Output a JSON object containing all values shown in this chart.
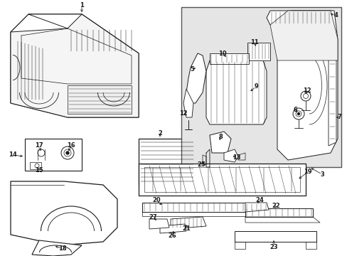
{
  "bg_color": "#ffffff",
  "line_color": "#1a1a1a",
  "box_fill": "#e8e8e8",
  "fig_w": 4.89,
  "fig_h": 3.6,
  "dpi": 100
}
